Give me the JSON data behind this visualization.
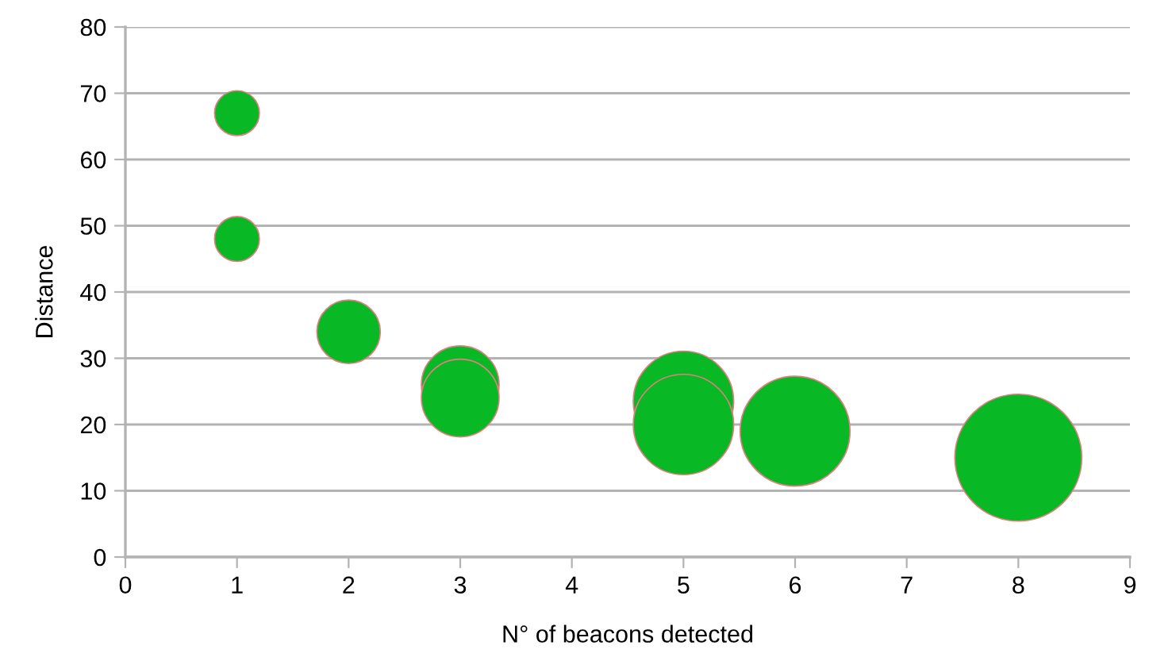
{
  "chart_data": {
    "type": "bubble",
    "xlabel": "N° of beacons detected",
    "ylabel": "Distance",
    "x": [
      1,
      1,
      2,
      3,
      3,
      5,
      5,
      6,
      8
    ],
    "values": [
      67,
      48,
      34,
      26,
      24,
      23.5,
      20,
      19,
      15
    ],
    "sizes": [
      0.125,
      0.125,
      0.25,
      0.375,
      0.375,
      0.625,
      0.625,
      0.75,
      1
    ],
    "color": "#09b825",
    "xlim": [
      0,
      9
    ],
    "xticks": [
      0,
      1,
      2,
      3,
      4,
      5,
      6,
      7,
      8,
      9
    ],
    "ylim": [
      0,
      80
    ],
    "yticks": [
      0,
      10,
      20,
      30,
      40,
      50,
      60,
      70,
      80
    ],
    "grid": "y"
  }
}
